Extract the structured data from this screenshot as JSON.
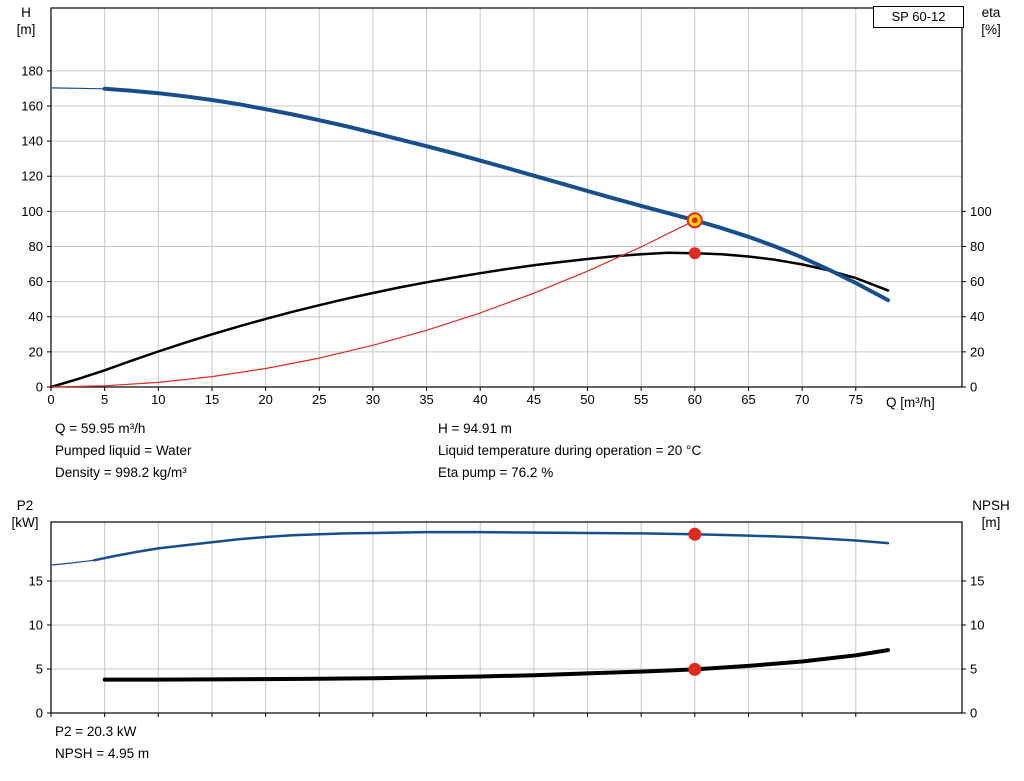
{
  "colors": {
    "grid": "#c8c8c8",
    "frame": "#000000",
    "blue": "#174f8c",
    "black": "#000000",
    "red": "#e02b20",
    "marker_yellow": "#ffd800"
  },
  "chart_data": [
    {
      "id": "qh-eta-chart",
      "type": "line",
      "title_box": "SP 60-12",
      "x_label": "Q [m³/h]",
      "y_left_label": [
        "H",
        "[m]"
      ],
      "y_right_label": [
        "eta",
        "[%]"
      ],
      "x_ticks": [
        0,
        5,
        10,
        15,
        20,
        25,
        30,
        35,
        40,
        45,
        50,
        55,
        60,
        65,
        70,
        75
      ],
      "x_range": [
        0,
        84.9
      ],
      "y_left_ticks": [
        0,
        20,
        40,
        60,
        80,
        100,
        120,
        140,
        160,
        180
      ],
      "y_left_range": [
        0,
        215.8
      ],
      "y_right_ticks": [
        0,
        20,
        40,
        60,
        80,
        100
      ],
      "y_right_range": [
        0,
        215.8
      ],
      "show_x_labels": true,
      "series": [
        {
          "name": "efficiency-curve",
          "axis": "right",
          "color": "#000000",
          "width": 2.5,
          "points": [
            [
              0,
              0
            ],
            [
              2.5,
              4.5
            ],
            [
              5,
              9.5
            ],
            [
              7.5,
              15
            ],
            [
              10,
              20.2
            ],
            [
              12.5,
              25.2
            ],
            [
              15,
              30
            ],
            [
              17.5,
              34.5
            ],
            [
              20,
              38.8
            ],
            [
              22.5,
              42.8
            ],
            [
              25,
              46.6
            ],
            [
              27.5,
              50.2
            ],
            [
              30,
              53.5
            ],
            [
              32.5,
              56.7
            ],
            [
              35,
              59.6
            ],
            [
              37.5,
              62.3
            ],
            [
              40,
              64.8
            ],
            [
              42.5,
              67.2
            ],
            [
              45,
              69.3
            ],
            [
              47.5,
              71.2
            ],
            [
              50,
              72.9
            ],
            [
              52.5,
              74.4
            ],
            [
              55,
              75.6
            ],
            [
              57.5,
              76.4
            ],
            [
              60,
              76.2
            ],
            [
              62.5,
              75.6
            ],
            [
              65,
              74.3
            ],
            [
              67.5,
              72.4
            ],
            [
              70,
              69.8
            ],
            [
              72.5,
              66.4
            ],
            [
              75,
              62
            ],
            [
              78,
              55
            ]
          ]
        },
        {
          "name": "system-curve",
          "axis": "left",
          "color": "#e02b20",
          "width": 1.2,
          "points": [
            [
              0,
              0
            ],
            [
              5,
              0.66
            ],
            [
              10,
              2.64
            ],
            [
              15,
              5.93
            ],
            [
              20,
              10.55
            ],
            [
              25,
              16.48
            ],
            [
              30,
              23.73
            ],
            [
              35,
              32.3
            ],
            [
              40,
              42.18
            ],
            [
              45,
              53.39
            ],
            [
              50,
              65.91
            ],
            [
              55,
              79.76
            ],
            [
              60,
              94.91
            ]
          ]
        },
        {
          "name": "head-curve-lead",
          "axis": "left",
          "color": "#174f8c",
          "width": 1.2,
          "points": [
            [
              0,
              170.3
            ],
            [
              2.5,
              170.1
            ],
            [
              5,
              169.8
            ]
          ]
        },
        {
          "name": "head-curve",
          "axis": "left",
          "color": "#174f8c",
          "width": 4,
          "points": [
            [
              5,
              169.8
            ],
            [
              7.5,
              168.7
            ],
            [
              10,
              167.3
            ],
            [
              12.5,
              165.5
            ],
            [
              15,
              163.4
            ],
            [
              17.5,
              161
            ],
            [
              20,
              158.2
            ],
            [
              22.5,
              155.2
            ],
            [
              25,
              151.9
            ],
            [
              27.5,
              148.5
            ],
            [
              30,
              144.8
            ],
            [
              32.5,
              141
            ],
            [
              35,
              137.1
            ],
            [
              37.5,
              133.1
            ],
            [
              40,
              128.9
            ],
            [
              42.5,
              124.7
            ],
            [
              45,
              120.3
            ],
            [
              47.5,
              116
            ],
            [
              50,
              111.6
            ],
            [
              52.5,
              107.3
            ],
            [
              55,
              103.1
            ],
            [
              57.5,
              99
            ],
            [
              60,
              94.91
            ],
            [
              62.5,
              90.5
            ],
            [
              65,
              85.5
            ],
            [
              67.5,
              80
            ],
            [
              70,
              73.8
            ],
            [
              72.5,
              66.8
            ],
            [
              75,
              59.2
            ],
            [
              78,
              49.5
            ]
          ]
        }
      ],
      "markers": [
        {
          "name": "duty-point",
          "x": 60,
          "y": 94.91,
          "axis": "left",
          "r": 7,
          "fill": "#ffd800",
          "stroke": "#e02b20",
          "stroke_width": 2
        },
        {
          "name": "duty-point-center",
          "x": 60,
          "y": 94.91,
          "axis": "left",
          "r": 2.5,
          "fill": "#e02b20",
          "stroke": "#e02b20",
          "stroke_width": 1
        },
        {
          "name": "efficiency-point",
          "x": 60,
          "y": 76.2,
          "axis": "right",
          "r": 5.5,
          "fill": "#e02b20",
          "stroke": "#e02b20",
          "stroke_width": 1
        }
      ]
    },
    {
      "id": "p2-npsh-chart",
      "type": "line",
      "y_left_label": [
        "P2",
        "[kW]"
      ],
      "y_right_label": [
        "NPSH",
        "[m]"
      ],
      "x_ticks": [
        0,
        5,
        10,
        15,
        20,
        25,
        30,
        35,
        40,
        45,
        50,
        55,
        60,
        65,
        70,
        75
      ],
      "x_range": [
        0,
        84.9
      ],
      "y_left_ticks": [
        0,
        5,
        10,
        15
      ],
      "y_left_range": [
        0,
        21.7
      ],
      "y_right_ticks": [
        0,
        5,
        10,
        15
      ],
      "y_right_range": [
        0,
        21.7
      ],
      "show_x_labels": false,
      "series": [
        {
          "name": "p2-curve-lead",
          "axis": "left",
          "color": "#174f8c",
          "width": 1.2,
          "points": [
            [
              0,
              16.8
            ],
            [
              2,
              17.05
            ],
            [
              4,
              17.35
            ]
          ]
        },
        {
          "name": "p2-curve",
          "axis": "left",
          "color": "#174f8c",
          "width": 2.5,
          "points": [
            [
              4,
              17.35
            ],
            [
              6,
              17.85
            ],
            [
              8,
              18.3
            ],
            [
              10,
              18.7
            ],
            [
              12.5,
              19.05
            ],
            [
              15,
              19.4
            ],
            [
              17.5,
              19.75
            ],
            [
              20,
              20.0
            ],
            [
              22.5,
              20.2
            ],
            [
              25,
              20.3
            ],
            [
              27.5,
              20.4
            ],
            [
              30,
              20.45
            ],
            [
              35,
              20.55
            ],
            [
              40,
              20.55
            ],
            [
              45,
              20.5
            ],
            [
              50,
              20.45
            ],
            [
              55,
              20.4
            ],
            [
              60,
              20.3
            ],
            [
              65,
              20.15
            ],
            [
              70,
              19.95
            ],
            [
              75,
              19.6
            ],
            [
              78,
              19.3
            ]
          ]
        },
        {
          "name": "npsh-curve",
          "axis": "right",
          "color": "#000000",
          "width": 4,
          "points": [
            [
              5,
              3.8
            ],
            [
              10,
              3.8
            ],
            [
              15,
              3.82
            ],
            [
              20,
              3.85
            ],
            [
              25,
              3.9
            ],
            [
              30,
              3.95
            ],
            [
              35,
              4.05
            ],
            [
              40,
              4.15
            ],
            [
              45,
              4.3
            ],
            [
              50,
              4.5
            ],
            [
              55,
              4.7
            ],
            [
              60,
              4.95
            ],
            [
              65,
              5.35
            ],
            [
              70,
              5.85
            ],
            [
              75,
              6.55
            ],
            [
              78,
              7.15
            ]
          ]
        }
      ],
      "markers": [
        {
          "name": "p2-point",
          "x": 60,
          "y": 20.3,
          "axis": "left",
          "r": 6,
          "fill": "#e02b20",
          "stroke": "#e02b20",
          "stroke_width": 1
        },
        {
          "name": "npsh-point",
          "x": 60,
          "y": 4.95,
          "axis": "right",
          "r": 6,
          "fill": "#e02b20",
          "stroke": "#e02b20",
          "stroke_width": 1
        }
      ]
    }
  ],
  "readouts": {
    "top_left": [
      "Q = 59.95 m³/h",
      "Pumped liquid = Water",
      "Density = 998.2 kg/m³"
    ],
    "top_right": [
      "H = 94.91 m",
      "Liquid temperature during operation = 20 °C",
      "Eta pump = 76.2 %"
    ],
    "bottom_left": [
      "P2 = 20.3 kW",
      "NPSH = 4.95 m"
    ]
  }
}
